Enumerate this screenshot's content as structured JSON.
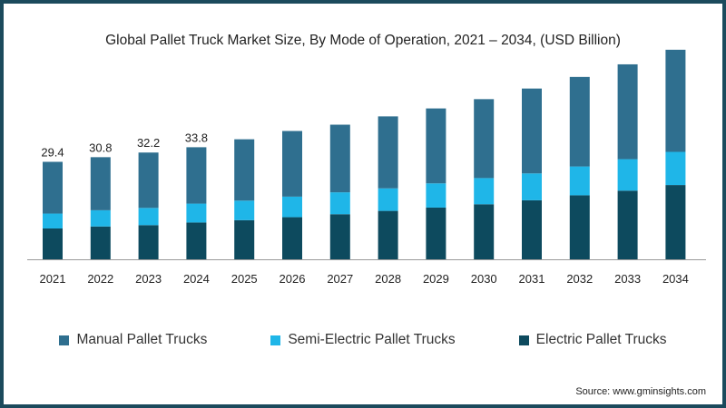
{
  "chart_data": {
    "type": "bar",
    "stacked": true,
    "title": "Global Pallet Truck Market Size, By Mode of Operation, 2021 – 2034, (USD Billion)",
    "xlabel": "",
    "ylabel": "",
    "categories": [
      "2021",
      "2022",
      "2023",
      "2024",
      "2025",
      "2026",
      "2027",
      "2028",
      "2029",
      "2030",
      "2031",
      "2032",
      "2033",
      "2034"
    ],
    "series": [
      {
        "name": "Electric Pallet Trucks",
        "color": "#0d4a5e",
        "values": [
          9.3,
          9.9,
          10.3,
          11.1,
          11.8,
          12.7,
          13.6,
          14.6,
          15.6,
          16.6,
          17.8,
          19.3,
          20.7,
          22.4
        ]
      },
      {
        "name": "Semi-Electric Pallet Trucks",
        "color": "#1fb6e8",
        "values": [
          4.5,
          4.9,
          5.2,
          5.7,
          5.9,
          6.2,
          6.6,
          6.8,
          7.3,
          7.9,
          8.1,
          8.7,
          9.5,
          10.0
        ]
      },
      {
        "name": "Manual Pallet Trucks",
        "color": "#2f6f8f",
        "values": [
          15.6,
          16.0,
          16.7,
          17.0,
          18.5,
          19.8,
          20.4,
          21.7,
          22.6,
          23.8,
          25.6,
          27.0,
          28.6,
          30.8
        ]
      }
    ],
    "data_labels": {
      "2021": "29.4",
      "2022": "30.8",
      "2023": "32.2",
      "2024": "33.8"
    },
    "ylim": [
      0,
      70
    ],
    "grid": false,
    "legend": {
      "position": "bottom",
      "entries": [
        "Manual Pallet Trucks",
        "Semi-Electric Pallet Trucks",
        "Electric Pallet Trucks"
      ]
    }
  },
  "source": "Source: www.gminsights.com",
  "colors": {
    "border": "#1b4a5c",
    "axis": "#9a9a9a"
  }
}
